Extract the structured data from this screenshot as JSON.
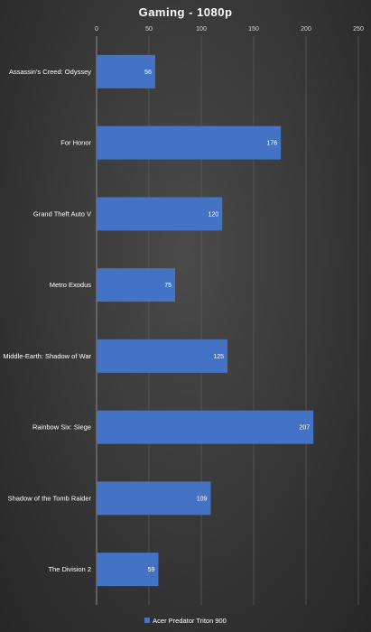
{
  "chart_data": {
    "type": "bar",
    "orientation": "horizontal",
    "title": "Gaming - 1080p",
    "categories": [
      "Assassin's Creed: Odyssey",
      "For Honor",
      "Grand Theft Auto V",
      "Metro Exodus",
      "Middle-Earth: Shadow of War",
      "Rainbow Six: Siege",
      "Shadow of the Tomb Raider",
      "The Division 2"
    ],
    "series": [
      {
        "name": "Acer Predator Triton 900",
        "values": [
          56,
          176,
          120,
          75,
          125,
          207,
          109,
          59
        ],
        "color": "#4472c4"
      }
    ],
    "xlim": [
      0,
      250
    ],
    "xticks": [
      0,
      50,
      100,
      150,
      200,
      250
    ],
    "axis_position": "top",
    "grid": true,
    "data_labels": true,
    "legend": "bottom"
  }
}
